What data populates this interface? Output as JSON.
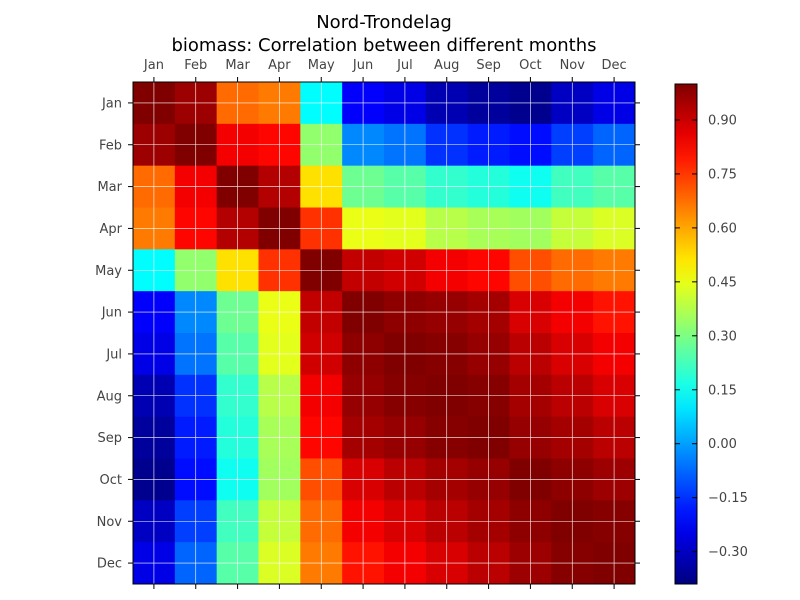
{
  "chart_data": {
    "type": "heatmap",
    "title_line1": "Nord-Trondelag",
    "title_line2": "biomass: Correlation between different months",
    "categories": [
      "Jan",
      "Feb",
      "Mar",
      "Apr",
      "May",
      "Jun",
      "Jul",
      "Aug",
      "Sep",
      "Oct",
      "Nov",
      "Dec"
    ],
    "matrix": [
      [
        1.0,
        0.96,
        0.68,
        0.66,
        0.13,
        -0.22,
        -0.25,
        -0.32,
        -0.35,
        -0.37,
        -0.3,
        -0.25
      ],
      [
        0.96,
        1.0,
        0.84,
        0.82,
        0.33,
        -0.03,
        -0.06,
        -0.15,
        -0.18,
        -0.2,
        -0.13,
        -0.08
      ],
      [
        0.68,
        0.84,
        1.0,
        0.93,
        0.52,
        0.28,
        0.25,
        0.2,
        0.18,
        0.15,
        0.22,
        0.25
      ],
      [
        0.66,
        0.82,
        0.93,
        1.0,
        0.76,
        0.45,
        0.44,
        0.38,
        0.36,
        0.35,
        0.4,
        0.43
      ],
      [
        0.13,
        0.33,
        0.52,
        0.76,
        1.0,
        0.91,
        0.89,
        0.84,
        0.82,
        0.72,
        0.68,
        0.66
      ],
      [
        -0.22,
        -0.03,
        0.28,
        0.45,
        0.91,
        1.0,
        0.98,
        0.97,
        0.95,
        0.88,
        0.84,
        0.8
      ],
      [
        -0.25,
        -0.06,
        0.25,
        0.44,
        0.89,
        0.98,
        1.0,
        0.99,
        0.97,
        0.92,
        0.88,
        0.84
      ],
      [
        -0.32,
        -0.15,
        0.2,
        0.38,
        0.84,
        0.97,
        0.99,
        1.0,
        0.99,
        0.95,
        0.92,
        0.88
      ],
      [
        -0.35,
        -0.18,
        0.18,
        0.36,
        0.82,
        0.95,
        0.97,
        0.99,
        1.0,
        0.97,
        0.95,
        0.92
      ],
      [
        -0.37,
        -0.2,
        0.15,
        0.35,
        0.72,
        0.88,
        0.92,
        0.95,
        0.97,
        1.0,
        0.98,
        0.96
      ],
      [
        -0.3,
        -0.13,
        0.22,
        0.4,
        0.68,
        0.84,
        0.88,
        0.92,
        0.95,
        0.98,
        1.0,
        0.99
      ],
      [
        -0.25,
        -0.08,
        0.25,
        0.43,
        0.66,
        0.8,
        0.84,
        0.88,
        0.92,
        0.96,
        0.99,
        1.0
      ]
    ],
    "colormap": "jet",
    "vmin": -0.39,
    "vmax": 1.0,
    "colorbar_ticks": [
      -0.3,
      -0.15,
      0.0,
      0.15,
      0.3,
      0.45,
      0.6,
      0.75,
      0.9
    ],
    "colorbar_tick_labels": [
      "−0.30",
      "−0.15",
      "0.00",
      "0.15",
      "0.30",
      "0.45",
      "0.60",
      "0.75",
      "0.90"
    ],
    "grid": true
  }
}
